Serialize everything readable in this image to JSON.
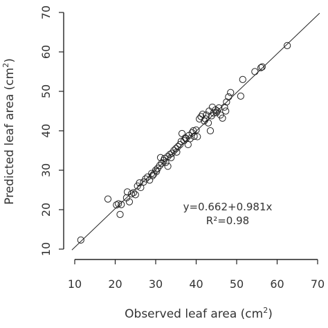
{
  "chart_data": {
    "type": "scatter",
    "xlabel": "Observed leaf area (cm",
    "xlabel_sup": "2",
    "xlabel_close": ")",
    "ylabel": "Predicted leaf area (cm",
    "ylabel_sup": "2",
    "ylabel_close": ")",
    "xlim": [
      10,
      70
    ],
    "ylim": [
      10,
      70
    ],
    "xticks": [
      10,
      20,
      30,
      40,
      50,
      60,
      70
    ],
    "yticks": [
      10,
      20,
      30,
      40,
      50,
      60,
      70
    ],
    "grid": false,
    "legend": "none",
    "fit_line": {
      "intercept": 0.662,
      "slope": 0.981
    },
    "annotation": {
      "equation": "y=0.662+0.981x",
      "r2": "R²=0.98"
    },
    "points": [
      [
        11.5,
        12.3
      ],
      [
        18.2,
        22.7
      ],
      [
        20.3,
        21.2
      ],
      [
        20.8,
        21.5
      ],
      [
        21.2,
        18.8
      ],
      [
        21.5,
        21.3
      ],
      [
        22.8,
        23.0
      ],
      [
        23.0,
        24.5
      ],
      [
        23.5,
        22.0
      ],
      [
        24.0,
        24.0
      ],
      [
        24.5,
        24.3
      ],
      [
        25.0,
        23.8
      ],
      [
        25.5,
        26.0
      ],
      [
        26.0,
        26.8
      ],
      [
        26.3,
        25.6
      ],
      [
        27.0,
        27.0
      ],
      [
        27.5,
        27.8
      ],
      [
        28.0,
        28.3
      ],
      [
        28.5,
        27.5
      ],
      [
        29.0,
        29.2
      ],
      [
        29.2,
        28.6
      ],
      [
        29.5,
        29.0
      ],
      [
        30.0,
        30.0
      ],
      [
        30.2,
        29.7
      ],
      [
        30.5,
        30.5
      ],
      [
        31.0,
        31.2
      ],
      [
        31.2,
        33.2
      ],
      [
        31.5,
        31.8
      ],
      [
        32.0,
        32.5
      ],
      [
        32.2,
        33.0
      ],
      [
        32.5,
        32.0
      ],
      [
        33.0,
        33.5
      ],
      [
        33.0,
        31.0
      ],
      [
        33.5,
        34.0
      ],
      [
        33.8,
        33.2
      ],
      [
        34.0,
        34.3
      ],
      [
        34.5,
        35.0
      ],
      [
        35.0,
        35.5
      ],
      [
        35.2,
        34.6
      ],
      [
        35.5,
        36.0
      ],
      [
        36.0,
        36.5
      ],
      [
        36.3,
        37.3
      ],
      [
        36.5,
        39.3
      ],
      [
        37.0,
        37.5
      ],
      [
        37.3,
        38.2
      ],
      [
        37.5,
        38.0
      ],
      [
        38.0,
        36.5
      ],
      [
        38.2,
        38.8
      ],
      [
        38.5,
        38.0
      ],
      [
        39.0,
        39.5
      ],
      [
        39.3,
        40.0
      ],
      [
        39.5,
        38.6
      ],
      [
        40.0,
        40.2
      ],
      [
        40.3,
        38.5
      ],
      [
        40.8,
        43.0
      ],
      [
        41.2,
        43.6
      ],
      [
        41.6,
        44.2
      ],
      [
        42.0,
        42.5
      ],
      [
        42.3,
        43.0
      ],
      [
        42.5,
        44.0
      ],
      [
        43.0,
        42.0
      ],
      [
        43.2,
        45.0
      ],
      [
        43.5,
        40.0
      ],
      [
        43.8,
        43.8
      ],
      [
        44.0,
        46.0
      ],
      [
        44.3,
        44.5
      ],
      [
        44.8,
        45.3
      ],
      [
        45.0,
        44.6
      ],
      [
        45.2,
        45.0
      ],
      [
        45.6,
        45.8
      ],
      [
        46.0,
        44.0
      ],
      [
        46.5,
        43.2
      ],
      [
        47.0,
        46.0
      ],
      [
        47.3,
        45.0
      ],
      [
        47.5,
        47.3
      ],
      [
        48.0,
        48.6
      ],
      [
        48.5,
        49.7
      ],
      [
        51.0,
        48.8
      ],
      [
        51.5,
        53.0
      ],
      [
        54.5,
        55.0
      ],
      [
        56.0,
        56.0
      ],
      [
        56.3,
        56.2
      ],
      [
        62.5,
        61.6
      ]
    ]
  }
}
